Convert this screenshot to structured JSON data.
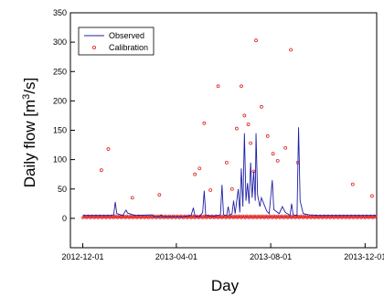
{
  "chart_data": {
    "type": "line",
    "xlabel": "Day",
    "ylabel_prefix": "Daily flow [m",
    "ylabel_sup": "3",
    "ylabel_suffix": "/s]",
    "xlim": [
      "2012-11-15",
      "2013-12-16"
    ],
    "ylim": [
      -50,
      350
    ],
    "x_ticks": [
      "2012-12-01",
      "2013-04-01",
      "2013-08-01",
      "2013-12-01"
    ],
    "y_ticks": [
      0,
      50,
      100,
      150,
      200,
      250,
      300,
      350
    ],
    "grid": false,
    "legend_position": "top-left",
    "colors": {
      "observed": "#1f1fa8",
      "calibration": "#e02020"
    },
    "series": [
      {
        "name": "Observed",
        "style": "line",
        "points": [
          [
            "2012-12-01",
            5
          ],
          [
            "2013-01-05",
            5
          ],
          [
            "2013-01-10",
            6
          ],
          [
            "2013-01-12",
            28
          ],
          [
            "2013-01-14",
            8
          ],
          [
            "2013-01-22",
            5
          ],
          [
            "2013-01-24",
            10
          ],
          [
            "2013-01-26",
            14
          ],
          [
            "2013-01-28",
            9
          ],
          [
            "2013-02-04",
            6
          ],
          [
            "2013-02-06",
            5
          ],
          [
            "2013-03-01",
            6
          ],
          [
            "2013-03-03",
            3
          ],
          [
            "2013-03-10",
            3
          ],
          [
            "2013-03-12",
            6
          ],
          [
            "2013-03-14",
            3
          ],
          [
            "2013-04-10",
            3
          ],
          [
            "2013-04-20",
            5
          ],
          [
            "2013-04-23",
            18
          ],
          [
            "2013-04-25",
            4
          ],
          [
            "2013-05-01",
            3
          ],
          [
            "2013-05-05",
            10
          ],
          [
            "2013-05-07",
            47
          ],
          [
            "2013-05-09",
            5
          ],
          [
            "2013-05-20",
            4
          ],
          [
            "2013-05-28",
            6
          ],
          [
            "2013-05-30",
            57
          ],
          [
            "2013-06-01",
            6
          ],
          [
            "2013-06-05",
            5
          ],
          [
            "2013-06-07",
            20
          ],
          [
            "2013-06-09",
            5
          ],
          [
            "2013-06-12",
            8
          ],
          [
            "2013-06-14",
            30
          ],
          [
            "2013-06-16",
            8
          ],
          [
            "2013-06-20",
            50
          ],
          [
            "2013-06-22",
            10
          ],
          [
            "2013-06-24",
            85
          ],
          [
            "2013-06-26",
            20
          ],
          [
            "2013-06-28",
            145
          ],
          [
            "2013-06-30",
            30
          ],
          [
            "2013-07-02",
            60
          ],
          [
            "2013-07-04",
            25
          ],
          [
            "2013-07-06",
            95
          ],
          [
            "2013-07-08",
            35
          ],
          [
            "2013-07-10",
            80
          ],
          [
            "2013-07-12",
            30
          ],
          [
            "2013-07-13",
            145
          ],
          [
            "2013-07-15",
            40
          ],
          [
            "2013-07-18",
            20
          ],
          [
            "2013-07-20",
            35
          ],
          [
            "2013-07-23",
            25
          ],
          [
            "2013-07-27",
            12
          ],
          [
            "2013-07-30",
            8
          ],
          [
            "2013-08-03",
            65
          ],
          [
            "2013-08-05",
            15
          ],
          [
            "2013-08-12",
            8
          ],
          [
            "2013-08-16",
            20
          ],
          [
            "2013-08-20",
            10
          ],
          [
            "2013-08-26",
            5
          ],
          [
            "2013-08-28",
            25
          ],
          [
            "2013-08-30",
            6
          ],
          [
            "2013-09-04",
            5
          ],
          [
            "2013-09-06",
            155
          ],
          [
            "2013-09-08",
            30
          ],
          [
            "2013-09-12",
            8
          ],
          [
            "2013-09-20",
            6
          ],
          [
            "2013-10-01",
            5
          ],
          [
            "2013-11-01",
            5
          ],
          [
            "2013-12-15",
            5
          ]
        ]
      },
      {
        "name": "Calibration",
        "style": "markers",
        "points": [
          [
            "2012-12-25",
            82
          ],
          [
            "2013-01-03",
            118
          ],
          [
            "2013-02-03",
            35
          ],
          [
            "2013-03-10",
            40
          ],
          [
            "2013-04-25",
            75
          ],
          [
            "2013-05-01",
            85
          ],
          [
            "2013-05-07",
            162
          ],
          [
            "2013-05-15",
            48
          ],
          [
            "2013-05-25",
            225
          ],
          [
            "2013-06-05",
            95
          ],
          [
            "2013-06-12",
            50
          ],
          [
            "2013-06-18",
            153
          ],
          [
            "2013-06-24",
            225
          ],
          [
            "2013-06-28",
            175
          ],
          [
            "2013-07-03",
            160
          ],
          [
            "2013-07-06",
            128
          ],
          [
            "2013-07-10",
            80
          ],
          [
            "2013-07-13",
            303
          ],
          [
            "2013-07-20",
            190
          ],
          [
            "2013-07-28",
            140
          ],
          [
            "2013-08-04",
            110
          ],
          [
            "2013-08-10",
            98
          ],
          [
            "2013-08-20",
            120
          ],
          [
            "2013-08-27",
            287
          ],
          [
            "2013-09-05",
            95
          ],
          [
            "2013-11-15",
            58
          ],
          [
            "2013-12-10",
            38
          ]
        ]
      }
    ]
  }
}
